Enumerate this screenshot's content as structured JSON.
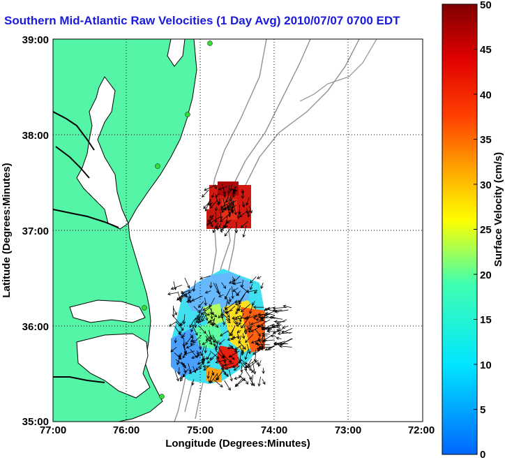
{
  "title": "Southern Mid-Atlantic Raw Velocities (1 Day Avg) 2010/07/07 0700 EDT",
  "map": {
    "xlabel": "Longitude (Degrees:Minutes)",
    "ylabel": "Latitude (Degrees:Minutes)",
    "x_ticks": [
      "77:00",
      "76:00",
      "75:00",
      "74:00",
      "73:00",
      "72:00"
    ],
    "y_ticks": [
      "39:00",
      "38:00",
      "37:00",
      "36:00",
      "35:00"
    ],
    "grid": "dotted",
    "colors": {
      "land": "#55f5a8",
      "ocean": "#ffffff",
      "bathymetry": "#909090",
      "coastline": "#000000",
      "site_marker": "#33dd33",
      "vectors": "#000000"
    }
  },
  "colorbar": {
    "label": "Surface Velocity (cm/s)",
    "ticks": [
      "50",
      "45",
      "40",
      "35",
      "30",
      "25",
      "20",
      "15",
      "10",
      "5",
      "0"
    ],
    "range": [
      0,
      50
    ],
    "colormap": [
      "#0000ff",
      "#00ffff",
      "#ffff00",
      "#ff0000",
      "#800000"
    ]
  }
}
